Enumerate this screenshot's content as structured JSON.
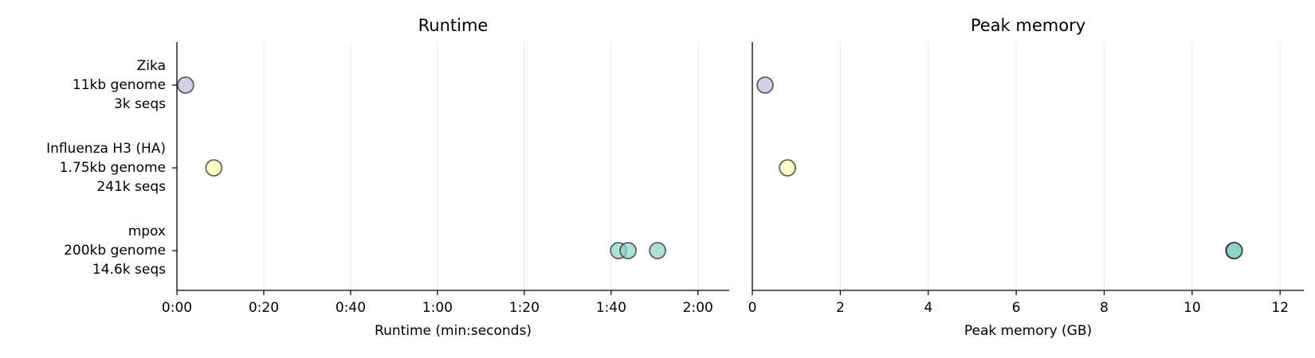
{
  "chart_data": [
    {
      "type": "scatter",
      "title": "Runtime",
      "xlabel": "Runtime  (min:seconds)",
      "categories": [
        [
          "Zika",
          "11kb genome",
          "3k seqs"
        ],
        [
          "Influenza H3 (HA)",
          "1.75kb genome",
          "241k seqs"
        ],
        [
          "mpox",
          "200kb genome",
          "14.6k seqs"
        ]
      ],
      "colors": [
        "#bebada",
        "#ffffb3",
        "#8dd3c7"
      ],
      "values": [
        [
          2
        ],
        [
          8.5
        ],
        [
          101.7,
          103.9,
          110.7
        ]
      ],
      "xlim": [
        0,
        127.2
      ],
      "xticks": [
        {
          "value": 0,
          "label": "0:00"
        },
        {
          "value": 20,
          "label": "0:20"
        },
        {
          "value": 40,
          "label": "0:40"
        },
        {
          "value": 60,
          "label": "1:00"
        },
        {
          "value": 80,
          "label": "1:20"
        },
        {
          "value": 100,
          "label": "1:40"
        },
        {
          "value": 120,
          "label": "2:00"
        }
      ],
      "grid": true
    },
    {
      "type": "scatter",
      "title": "Peak memory",
      "xlabel": "Peak memory  (GB)",
      "colors": [
        "#bebada",
        "#ffffb3",
        "#8dd3c7"
      ],
      "values": [
        [
          0.29
        ],
        [
          0.8
        ],
        [
          10.95,
          10.95,
          10.96
        ]
      ],
      "xlim": [
        0,
        12.54
      ],
      "xticks": [
        0,
        2,
        4,
        6,
        8,
        10,
        12
      ],
      "grid": true
    }
  ]
}
